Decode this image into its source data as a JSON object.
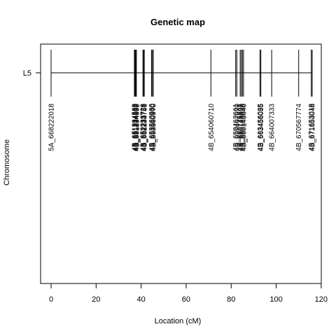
{
  "chart_data": {
    "type": "genetic-map",
    "title": "Genetic map",
    "xlabel": "Location (cM)",
    "ylabel": "Chromosome",
    "chromosome": "L5",
    "xlim": [
      0,
      120
    ],
    "xticks": [
      0,
      20,
      40,
      60,
      80,
      100,
      120
    ],
    "grid": false,
    "markers": [
      {
        "name": "5A_668222018",
        "x": 0
      },
      {
        "name": "4B_651234562",
        "x": 37.0
      },
      {
        "name": "4B_651234569",
        "x": 37.3
      },
      {
        "name": "4B_651234583",
        "x": 37.6
      },
      {
        "name": "4B_651234592",
        "x": 37.9
      },
      {
        "name": "4B_652233726",
        "x": 40.8
      },
      {
        "name": "4B_652233738",
        "x": 41.1
      },
      {
        "name": "4B_652233751",
        "x": 41.4
      },
      {
        "name": "4B_653560930",
        "x": 44.6
      },
      {
        "name": "4B_653560960",
        "x": 45.0
      },
      {
        "name": "4B_653560970",
        "x": 45.4
      },
      {
        "name": "4B_654060710",
        "x": 71.0
      },
      {
        "name": "4B_659462661",
        "x": 82.0
      },
      {
        "name": "4B_659462670",
        "x": 82.5
      },
      {
        "name": "4B_660145601",
        "x": 84.0
      },
      {
        "name": "4B_660145620",
        "x": 84.5
      },
      {
        "name": "4B_660145630",
        "x": 85.0
      },
      {
        "name": "4B_660145640",
        "x": 85.5
      },
      {
        "name": "4B_663456035",
        "x": 92.8
      },
      {
        "name": "4B_663456085",
        "x": 93.2
      },
      {
        "name": "4B_664007333",
        "x": 98.0
      },
      {
        "name": "4B_670567774",
        "x": 110.0
      },
      {
        "name": "4B_671653018",
        "x": 115.6
      },
      {
        "name": "4B_671653048",
        "x": 116.0
      }
    ]
  },
  "colors": {
    "line": "#000000",
    "background": "#ffffff"
  }
}
